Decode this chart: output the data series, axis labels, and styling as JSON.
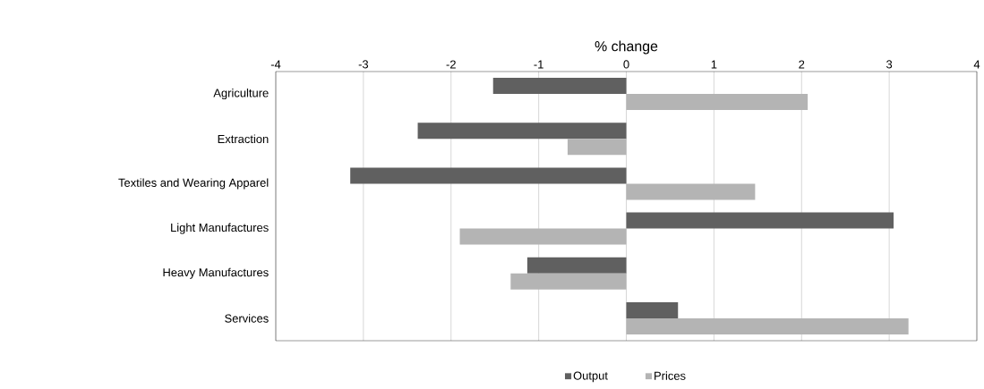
{
  "chart_data": {
    "type": "bar",
    "orientation": "horizontal",
    "xlabel": "% change",
    "categories": [
      "Agriculture",
      "Extraction",
      "Textiles and Wearing Apparel",
      "Light Manufactures",
      "Heavy Manufactures",
      "Services"
    ],
    "series": [
      {
        "name": "Output",
        "color": "#606060",
        "values": [
          -1.52,
          -2.38,
          -3.15,
          3.05,
          -1.13,
          0.59
        ]
      },
      {
        "name": "Prices",
        "color": "#b4b4b4",
        "values": [
          2.07,
          -0.67,
          1.47,
          -1.9,
          -1.32,
          3.22
        ]
      }
    ],
    "xlim": [
      -4,
      4
    ],
    "xticks": [
      -4,
      -3,
      -2,
      -1,
      0,
      1,
      2,
      3,
      4
    ],
    "grid": "x",
    "legend": "bottom"
  }
}
